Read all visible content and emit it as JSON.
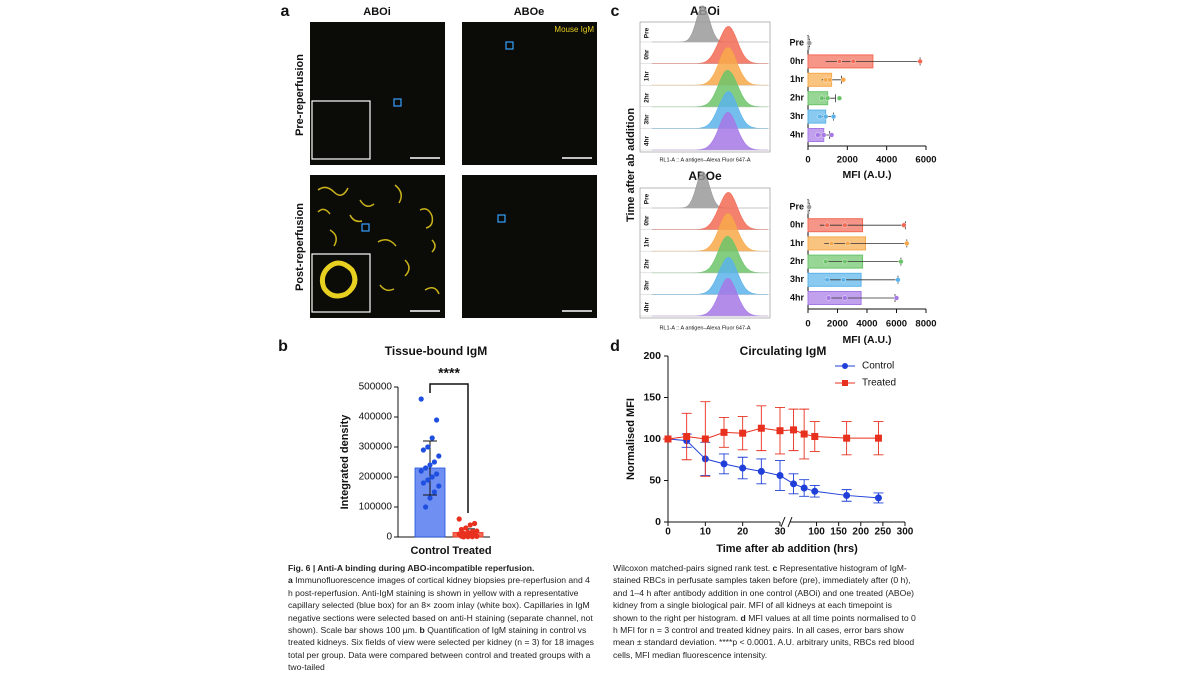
{
  "panel_a": {
    "label": "a",
    "columns": [
      "ABOi",
      "ABOe"
    ],
    "rows": [
      "Pre-reperfusion",
      "Post-reperfusion"
    ],
    "stain_label": "Mouse IgM"
  },
  "panel_b": {
    "label": "b"
  },
  "panel_c": {
    "label": "c",
    "histogram_titles": [
      "ABOi",
      "ABOe"
    ],
    "y_label": "Time after ab addition",
    "lanes": [
      "Pre",
      "0hr",
      "1hr",
      "2hr",
      "3hr",
      "4hr"
    ],
    "x_label": "RL1-A :: A antigen–Alexa Fluor 647-A"
  },
  "panel_d": {
    "label": "d"
  },
  "chart_data": [
    {
      "type": "bar",
      "title": "Tissue-bound IgM",
      "y_label": "Integrated density",
      "categories": [
        "Control",
        "Treated"
      ],
      "values": [
        230000,
        15000
      ],
      "errors": [
        90000,
        12000
      ],
      "colors": [
        "#6f8ff2",
        "#f26a55"
      ],
      "point_colors": [
        "#1f4fe0",
        "#e8301f"
      ],
      "points": [
        [
          460000,
          390000,
          330000,
          300000,
          290000,
          270000,
          250000,
          240000,
          230000,
          220000,
          210000,
          200000,
          190000,
          180000,
          170000,
          150000,
          130000,
          100000
        ],
        [
          60000,
          45000,
          40000,
          30000,
          25000,
          20000,
          18000,
          15000,
          12000,
          10000,
          8000,
          5000,
          4000,
          3000,
          2000,
          1000,
          1000,
          500
        ]
      ],
      "annotation": "****",
      "ylim": [
        0,
        500000
      ],
      "yticks": [
        0,
        100000,
        200000,
        300000,
        400000,
        500000
      ]
    },
    {
      "type": "hbar",
      "x_label": "MFI (A.U.)",
      "categories": [
        "Pre",
        "0hr",
        "1hr",
        "2hr",
        "3hr",
        "4hr"
      ],
      "values": [
        50,
        3300,
        1200,
        1000,
        900,
        800
      ],
      "errors": [
        30,
        2400,
        500,
        400,
        400,
        300
      ],
      "colors": [
        "#9a9a9a",
        "#f26a55",
        "#f7a94a",
        "#6cc46a",
        "#5ab3ea",
        "#a678e6"
      ],
      "points": [
        [
          30,
          50,
          70
        ],
        [
          1600,
          2300,
          5700
        ],
        [
          900,
          1100,
          1800
        ],
        [
          700,
          1000,
          1600
        ],
        [
          600,
          900,
          1300
        ],
        [
          500,
          800,
          1200
        ]
      ],
      "xlim": [
        0,
        6000
      ],
      "xticks": [
        0,
        2000,
        4000,
        6000
      ]
    },
    {
      "type": "hbar",
      "x_label": "MFI (A.U.)",
      "categories": [
        "Pre",
        "0hr",
        "1hr",
        "2hr",
        "3hr",
        "4hr"
      ],
      "values": [
        60,
        3700,
        3900,
        3700,
        3600,
        3600
      ],
      "errors": [
        40,
        2900,
        2800,
        2600,
        2500,
        2300
      ],
      "colors": [
        "#9a9a9a",
        "#f26a55",
        "#f7a94a",
        "#6cc46a",
        "#5ab3ea",
        "#a678e6"
      ],
      "points": [
        [
          40,
          60,
          80
        ],
        [
          1300,
          2500,
          6500
        ],
        [
          1600,
          2700,
          6700
        ],
        [
          1200,
          2500,
          6300
        ],
        [
          1300,
          2400,
          6100
        ],
        [
          1400,
          2500,
          6000
        ]
      ],
      "xlim": [
        0,
        8000
      ],
      "xticks": [
        0,
        2000,
        4000,
        6000,
        8000
      ]
    },
    {
      "type": "line",
      "title": "Circulating IgM",
      "x_label": "Time after ab addition (hrs)",
      "y_label": "Normalised MFI",
      "x": [
        0,
        5,
        10,
        15,
        20,
        25,
        30,
        48,
        72,
        96,
        168,
        240
      ],
      "x_segments": [
        {
          "xlim": [
            0,
            30
          ],
          "xticks": [
            0,
            10,
            20,
            30
          ]
        },
        {
          "xlim": [
            40,
            300
          ],
          "xticks": [
            100,
            150,
            200,
            250,
            300
          ]
        }
      ],
      "ylim": [
        0,
        200
      ],
      "yticks": [
        0,
        50,
        100,
        150,
        200
      ],
      "series": [
        {
          "name": "Control",
          "color": "#1f3fd8",
          "values": [
            100,
            98,
            76,
            70,
            65,
            61,
            56,
            46,
            41,
            37,
            32,
            29
          ],
          "errors": [
            0,
            8,
            20,
            12,
            13,
            15,
            18,
            12,
            10,
            7,
            7,
            6
          ]
        },
        {
          "name": "Treated",
          "color": "#e8301f",
          "values": [
            100,
            103,
            100,
            108,
            107,
            113,
            110,
            111,
            106,
            103,
            101,
            101
          ],
          "errors": [
            0,
            28,
            45,
            18,
            20,
            27,
            28,
            25,
            30,
            18,
            20,
            20
          ]
        }
      ]
    }
  ],
  "caption": {
    "left": [
      {
        "text": "Fig. 6 | Anti-A binding during ABO-incompatible reperfusion.",
        "bold": true
      },
      {
        "text": "a",
        "bold": true
      },
      {
        "text": "Immunofluorescence images of cortical kidney biopsies pre-reperfusion and 4 h post-reperfusion. Anti-IgM staining is shown in yellow with a representative capillary selected (blue box) for an 8× zoom inlay (white box). Capillaries in IgM negative sections were selected based on anti-H staining (separate channel, not shown). Scale bar shows 100 µm.",
        "bold": false
      },
      {
        "text": "b",
        "bold": true
      },
      {
        "text": "Quantification of IgM staining in control vs treated kidneys. Six fields of view were selected per kidney (n = 3) for 18 images total per group. Data were compared between control and treated groups with a two-tailed",
        "bold": false
      }
    ],
    "right": [
      {
        "text": "Wilcoxon matched-pairs signed rank test.",
        "bold": false
      },
      {
        "text": "c",
        "bold": true
      },
      {
        "text": "Representative histogram of IgM-stained RBCs in perfusate samples taken before (pre), immediately after (0 h), and 1–4 h after antibody addition in one control (ABOi) and one treated (ABOe) kidney from a single biological pair. MFI of all kidneys at each timepoint is shown to the right per histogram.",
        "bold": false
      },
      {
        "text": "d",
        "bold": true
      },
      {
        "text": "MFI values at all time points normalised to 0 h MFI for n = 3 control and treated kidney pairs. In all cases, error bars show mean ± standard deviation. ****p < 0.0001. A.U. arbitrary units, RBCs red blood cells, MFI median fluorescence intensity.",
        "bold": false
      }
    ]
  }
}
